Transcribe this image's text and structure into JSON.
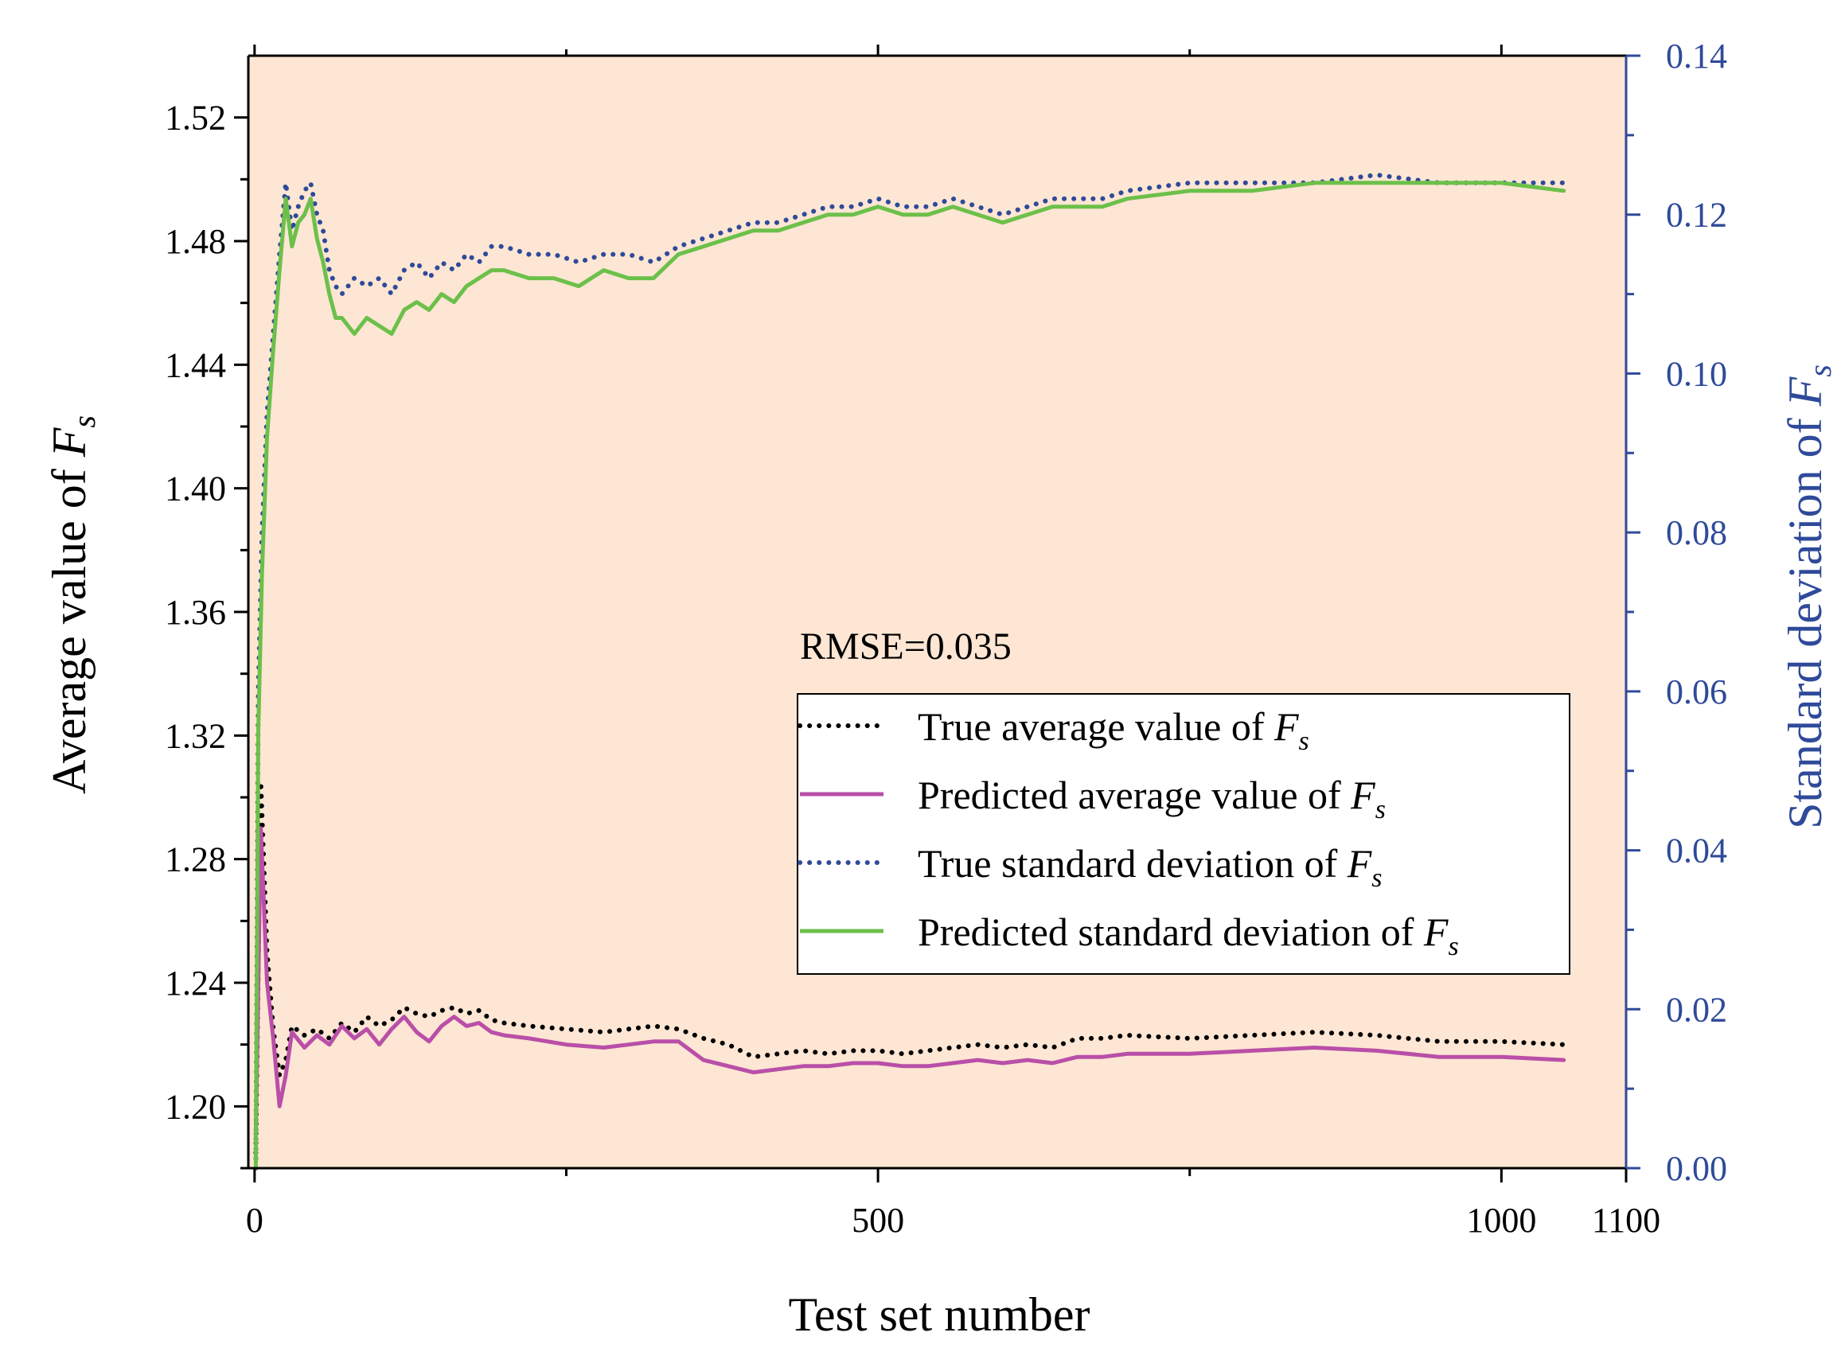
{
  "chart_data": {
    "type": "line",
    "title": "",
    "xlabel": "Test set number",
    "ylabel_left": {
      "text": "Average value of ",
      "var": "F",
      "sub": "s"
    },
    "ylabel_right": {
      "text": "Standard deviation of ",
      "var": "F",
      "sub": "s"
    },
    "xlim": [
      -5,
      1100
    ],
    "ylim_left": [
      1.18,
      1.54
    ],
    "ylim_right": [
      0.0,
      0.14
    ],
    "x_ticks": [
      0,
      500,
      1000,
      1100
    ],
    "x_tick_labels": [
      "0",
      "500",
      "1000",
      "1100"
    ],
    "y_left_ticks": [
      1.2,
      1.24,
      1.28,
      1.32,
      1.36,
      1.4,
      1.44,
      1.48,
      1.52
    ],
    "y_left_tick_labels": [
      "1.20",
      "1.24",
      "1.28",
      "1.32",
      "1.36",
      "1.40",
      "1.44",
      "1.48",
      "1.52"
    ],
    "y_right_ticks": [
      0.0,
      0.02,
      0.04,
      0.06,
      0.08,
      0.1,
      0.12,
      0.14
    ],
    "y_right_tick_labels": [
      "0.00",
      "0.02",
      "0.04",
      "0.06",
      "0.08",
      "0.10",
      "0.12",
      "0.14"
    ],
    "annotation": "RMSE=0.035",
    "legend_position": "right-middle",
    "colors": {
      "plot_bg": "#fde6d3",
      "true_avg": "#000000",
      "pred_avg": "#b94fa8",
      "true_std": "#2f4a9a",
      "pred_std": "#6cc04a",
      "right_axis": "#2f4a9a"
    },
    "series": [
      {
        "name": "True average value of ",
        "var": "F",
        "sub": "s",
        "axis": "left",
        "style": "dotted",
        "color": "#000000",
        "x": [
          1,
          5,
          10,
          15,
          20,
          25,
          30,
          40,
          50,
          60,
          70,
          80,
          90,
          100,
          110,
          120,
          130,
          140,
          150,
          160,
          170,
          180,
          190,
          200,
          220,
          250,
          280,
          300,
          320,
          340,
          360,
          380,
          400,
          420,
          440,
          460,
          480,
          500,
          520,
          540,
          560,
          580,
          600,
          620,
          640,
          660,
          680,
          700,
          750,
          800,
          850,
          900,
          950,
          1000,
          1050
        ],
        "values": [
          1.185,
          1.305,
          1.25,
          1.225,
          1.21,
          1.215,
          1.226,
          1.223,
          1.225,
          1.222,
          1.227,
          1.224,
          1.229,
          1.226,
          1.228,
          1.232,
          1.23,
          1.229,
          1.231,
          1.232,
          1.23,
          1.231,
          1.228,
          1.227,
          1.226,
          1.225,
          1.224,
          1.225,
          1.226,
          1.225,
          1.222,
          1.22,
          1.216,
          1.217,
          1.218,
          1.217,
          1.218,
          1.218,
          1.217,
          1.218,
          1.219,
          1.22,
          1.219,
          1.22,
          1.219,
          1.222,
          1.222,
          1.223,
          1.222,
          1.223,
          1.224,
          1.223,
          1.221,
          1.221,
          1.22
        ]
      },
      {
        "name": "Predicted average value of ",
        "var": "F",
        "sub": "s",
        "axis": "left",
        "style": "solid",
        "color": "#b94fa8",
        "x": [
          1,
          5,
          10,
          15,
          20,
          25,
          30,
          40,
          50,
          60,
          70,
          80,
          90,
          100,
          110,
          120,
          130,
          140,
          150,
          160,
          170,
          180,
          190,
          200,
          220,
          250,
          280,
          300,
          320,
          340,
          360,
          380,
          400,
          420,
          440,
          460,
          480,
          500,
          520,
          540,
          560,
          580,
          600,
          620,
          640,
          660,
          680,
          700,
          750,
          800,
          850,
          900,
          950,
          1000,
          1050
        ],
        "values": [
          1.19,
          1.29,
          1.24,
          1.222,
          1.2,
          1.21,
          1.224,
          1.219,
          1.223,
          1.22,
          1.226,
          1.222,
          1.225,
          1.22,
          1.225,
          1.229,
          1.224,
          1.221,
          1.226,
          1.229,
          1.226,
          1.227,
          1.224,
          1.223,
          1.222,
          1.22,
          1.219,
          1.22,
          1.221,
          1.221,
          1.215,
          1.213,
          1.211,
          1.212,
          1.213,
          1.213,
          1.214,
          1.214,
          1.213,
          1.213,
          1.214,
          1.215,
          1.214,
          1.215,
          1.214,
          1.216,
          1.216,
          1.217,
          1.217,
          1.218,
          1.219,
          1.218,
          1.216,
          1.216,
          1.215
        ]
      },
      {
        "name": "True standard deviation of ",
        "var": "F",
        "sub": "s",
        "axis": "right",
        "style": "dotted",
        "color": "#2f4a9a",
        "x": [
          1,
          3,
          6,
          10,
          15,
          20,
          25,
          30,
          35,
          40,
          45,
          50,
          55,
          60,
          65,
          70,
          80,
          90,
          100,
          110,
          120,
          130,
          140,
          150,
          160,
          170,
          180,
          190,
          200,
          220,
          240,
          260,
          280,
          300,
          320,
          340,
          360,
          380,
          400,
          420,
          440,
          460,
          480,
          500,
          520,
          540,
          560,
          580,
          600,
          620,
          640,
          660,
          680,
          700,
          750,
          800,
          850,
          900,
          950,
          1000,
          1050
        ],
        "values": [
          0.0,
          0.06,
          0.08,
          0.095,
          0.105,
          0.115,
          0.124,
          0.118,
          0.121,
          0.123,
          0.124,
          0.12,
          0.118,
          0.113,
          0.111,
          0.11,
          0.112,
          0.111,
          0.112,
          0.11,
          0.113,
          0.114,
          0.112,
          0.114,
          0.113,
          0.115,
          0.114,
          0.116,
          0.116,
          0.115,
          0.115,
          0.114,
          0.115,
          0.115,
          0.114,
          0.116,
          0.117,
          0.118,
          0.119,
          0.119,
          0.12,
          0.121,
          0.121,
          0.122,
          0.121,
          0.121,
          0.122,
          0.121,
          0.12,
          0.121,
          0.122,
          0.122,
          0.122,
          0.123,
          0.124,
          0.124,
          0.124,
          0.125,
          0.124,
          0.124,
          0.124
        ]
      },
      {
        "name": "Predicted standard deviation of ",
        "var": "F",
        "sub": "s",
        "axis": "right",
        "style": "solid",
        "color": "#6cc04a",
        "x": [
          1,
          3,
          6,
          10,
          15,
          20,
          25,
          30,
          35,
          40,
          45,
          50,
          55,
          60,
          65,
          70,
          80,
          90,
          100,
          110,
          120,
          130,
          140,
          150,
          160,
          170,
          180,
          190,
          200,
          220,
          240,
          260,
          280,
          300,
          320,
          340,
          360,
          380,
          400,
          420,
          440,
          460,
          480,
          500,
          520,
          540,
          560,
          580,
          600,
          620,
          640,
          660,
          680,
          700,
          750,
          800,
          850,
          900,
          950,
          1000,
          1050
        ],
        "values": [
          0.0,
          0.055,
          0.075,
          0.092,
          0.103,
          0.113,
          0.122,
          0.116,
          0.119,
          0.12,
          0.122,
          0.117,
          0.114,
          0.11,
          0.107,
          0.107,
          0.105,
          0.107,
          0.106,
          0.105,
          0.108,
          0.109,
          0.108,
          0.11,
          0.109,
          0.111,
          0.112,
          0.113,
          0.113,
          0.112,
          0.112,
          0.111,
          0.113,
          0.112,
          0.112,
          0.115,
          0.116,
          0.117,
          0.118,
          0.118,
          0.119,
          0.12,
          0.12,
          0.121,
          0.12,
          0.12,
          0.121,
          0.12,
          0.119,
          0.12,
          0.121,
          0.121,
          0.121,
          0.122,
          0.123,
          0.123,
          0.124,
          0.124,
          0.124,
          0.124,
          0.123
        ]
      }
    ]
  }
}
